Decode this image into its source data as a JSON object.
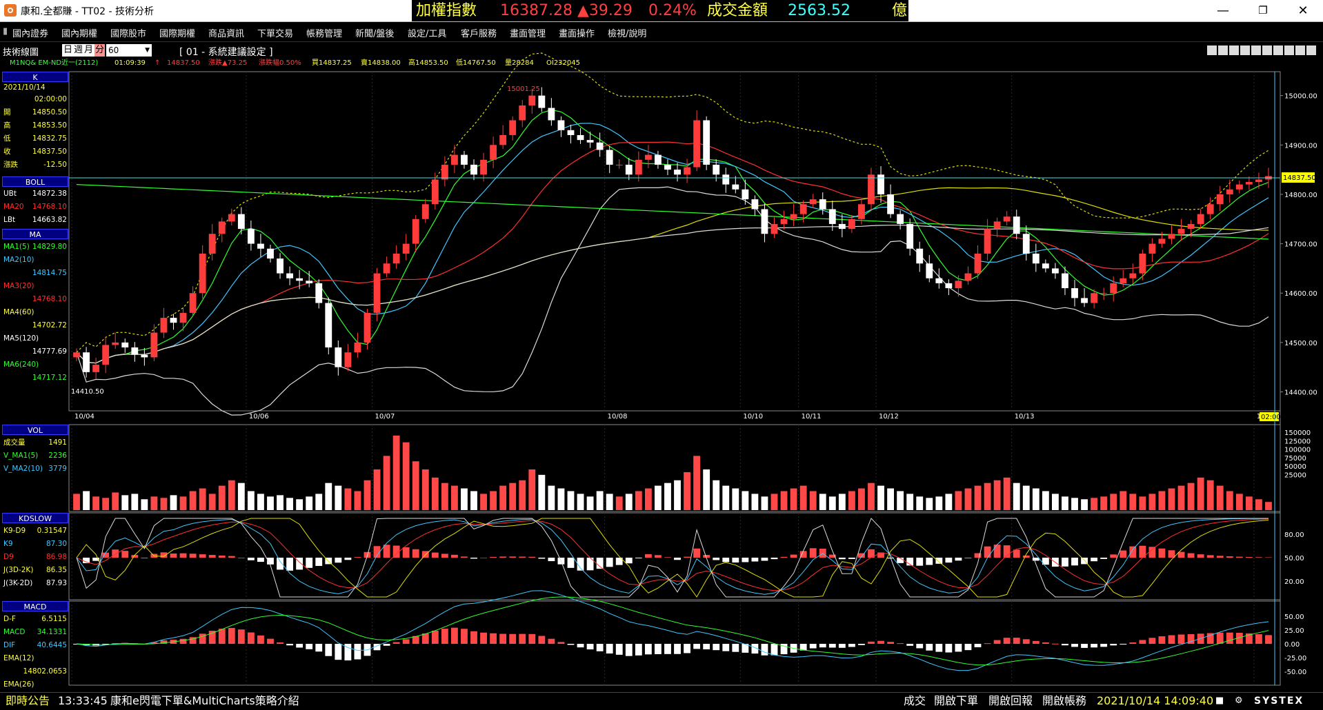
{
  "window": {
    "title": "康和.全都賺 - TT02 - 技術分析"
  },
  "ticker": {
    "label": "加權指數",
    "value": "16387.28",
    "change": "▲39.29",
    "pct": "0.24%",
    "vol_label": "成交金額",
    "vol_value": "2563.52",
    "unit": "億"
  },
  "menu": [
    "國內證券",
    "國內期權",
    "國際股市",
    "國際期權",
    "商品資訊",
    "下單交易",
    "帳務管理",
    "新聞/盤後",
    "設定/工具",
    "客戶服務",
    "畫面管理",
    "畫面操作",
    "檢視/說明"
  ],
  "toolbar": {
    "panel_title": "技術線圖",
    "periods": [
      "日",
      "週",
      "月",
      "分"
    ],
    "interval": "60",
    "settings_label": "[ 01 - 系統建議設定 ]"
  },
  "info": {
    "symbol": "M1NQ&  EM-ND近一(2112)",
    "time": "01:09:39",
    "arrow": "↑",
    "price": "14837.50",
    "change": "漲跌▲73.25",
    "change_pct": "漲跌幅0.50%",
    "bid": "買14837.25",
    "ask": "賣14838.00",
    "high": "高14853.50",
    "low": "低14767.50",
    "volume": "量28284",
    "oi": "OI232045"
  },
  "k_panel": {
    "header": "K",
    "date": "2021/10/14",
    "time": "02:00:00",
    "rows": [
      {
        "label": "開",
        "value": "14850.50"
      },
      {
        "label": "高",
        "value": "14853.50"
      },
      {
        "label": "低",
        "value": "14832.75"
      },
      {
        "label": "收",
        "value": "14837.50"
      },
      {
        "label": "漲跌",
        "value": "-12.50"
      }
    ]
  },
  "boll_panel": {
    "header": "BOLL",
    "rows": [
      {
        "label": "UBt",
        "value": "14872.38",
        "color": "#ffffff"
      },
      {
        "label": "MA20",
        "value": "14768.10",
        "color": "#ff3030"
      },
      {
        "label": "LBt",
        "value": "14663.82",
        "color": "#ffffff"
      }
    ]
  },
  "ma_panel": {
    "header": "MA",
    "rows": [
      {
        "label": "MA1(5)",
        "value": "14829.80",
        "color": "#30ff30",
        "split": false
      },
      {
        "label": "MA2(10)",
        "value": "14814.75",
        "color": "#40c8ff",
        "split": true
      },
      {
        "label": "MA3(20)",
        "value": "14768.10",
        "color": "#ff3030",
        "split": true
      },
      {
        "label": "MA4(60)",
        "value": "14702.72",
        "color": "#ffff40",
        "split": true
      },
      {
        "label": "MA5(120)",
        "value": "14777.69",
        "color": "#ffffff",
        "split": true
      },
      {
        "label": "MA6(240)",
        "value": "14717.12",
        "color": "#30ff30",
        "split": true
      }
    ]
  },
  "vol_panel": {
    "header": "VOL",
    "rows": [
      {
        "label": "成交量",
        "value": "1491",
        "color": "#ffff40"
      },
      {
        "label": "V_MA1(5)",
        "value": "2236",
        "color": "#30ff30"
      },
      {
        "label": "V_MA2(10)",
        "value": "3779",
        "color": "#40c8ff"
      }
    ]
  },
  "kd_panel": {
    "header": "KDSLOW",
    "rows": [
      {
        "label": "K9-D9",
        "value": "0.31547",
        "color": "#ffff40"
      },
      {
        "label": "K9",
        "value": "87.30",
        "color": "#40c8ff"
      },
      {
        "label": "D9",
        "value": "86.98",
        "color": "#ff3030"
      },
      {
        "label": "J(3D-2K)",
        "value": "86.35",
        "color": "#ffff40"
      },
      {
        "label": "J(3K-2D)",
        "value": "87.93",
        "color": "#ffffff"
      }
    ]
  },
  "macd_panel": {
    "header": "MACD",
    "rows": [
      {
        "label": "D-F",
        "value": "6.5115",
        "color": "#ffff40"
      },
      {
        "label": "MACD",
        "value": "34.1331",
        "color": "#30ff30"
      },
      {
        "label": "DIF",
        "value": "40.6445",
        "color": "#40c8ff"
      },
      {
        "label": "EMA(12)",
        "value": "",
        "color": "#ffff40"
      },
      {
        "label": "",
        "value": "14802.0653",
        "color": "#ffff40"
      },
      {
        "label": "EMA(26)",
        "value": "",
        "color": "#ffff40"
      }
    ]
  },
  "chart_data": {
    "type": "candlestick",
    "price_axis": {
      "ticks": [
        "15000.00",
        "14900.00",
        "14800.00",
        "14700.00",
        "14600.00",
        "14500.00",
        "14400.00"
      ],
      "ylim": [
        14370,
        15040
      ]
    },
    "last_price_label": "14837.50",
    "peak_label": "15001.25",
    "low_label": "14410.50",
    "date_labels": [
      "10/04",
      "10/06",
      "10/07",
      "10/08",
      "10/10",
      "10/11",
      "10/12",
      "10/13",
      "10/14",
      "02:00"
    ],
    "volume_axis": {
      "ticks": [
        "150000",
        "125000",
        "100000",
        "75000",
        "50000",
        "25000"
      ]
    },
    "kd_axis": {
      "ticks": [
        "80.00",
        "50.00",
        "20.00"
      ]
    },
    "macd_axis": {
      "ticks": [
        "50.00",
        "25.00",
        "0.00",
        "-25.00",
        "-50.00"
      ]
    },
    "closes": [
      14480,
      14440,
      14455,
      14495,
      14500,
      14490,
      14475,
      14470,
      14520,
      14550,
      14540,
      14560,
      14600,
      14680,
      14720,
      14745,
      14760,
      14730,
      14700,
      14690,
      14670,
      14640,
      14630,
      14625,
      14620,
      14580,
      14490,
      14450,
      14480,
      14500,
      14560,
      14640,
      14660,
      14680,
      14700,
      14750,
      14780,
      14830,
      14860,
      14880,
      14860,
      14840,
      14870,
      14900,
      14920,
      14950,
      14980,
      15000,
      14975,
      14950,
      14930,
      14920,
      14910,
      14905,
      14890,
      14860,
      14860,
      14840,
      14870,
      14880,
      14860,
      14850,
      14840,
      14855,
      14950,
      14860,
      14840,
      14820,
      14810,
      14790,
      14770,
      14720,
      14740,
      14750,
      14760,
      14780,
      14790,
      14770,
      14740,
      14730,
      14750,
      14780,
      14840,
      14800,
      14760,
      14740,
      14690,
      14660,
      14630,
      14620,
      14610,
      14625,
      14640,
      14680,
      14730,
      14745,
      14755,
      14720,
      14680,
      14660,
      14650,
      14640,
      14610,
      14590,
      14580,
      14600,
      14600,
      14620,
      14630,
      14640,
      14680,
      14700,
      14710,
      14720,
      14730,
      14740,
      14760,
      14780,
      14800,
      14810,
      14820,
      14825,
      14830,
      14837
    ],
    "volumes": [
      12,
      14,
      10,
      9,
      13,
      11,
      12,
      8,
      10,
      9,
      11,
      10,
      14,
      16,
      12,
      18,
      22,
      20,
      14,
      12,
      10,
      11,
      9,
      8,
      10,
      12,
      20,
      18,
      16,
      14,
      22,
      30,
      40,
      55,
      50,
      36,
      30,
      24,
      20,
      18,
      16,
      14,
      12,
      14,
      18,
      20,
      22,
      30,
      26,
      18,
      16,
      14,
      12,
      10,
      14,
      12,
      10,
      12,
      14,
      16,
      18,
      20,
      22,
      28,
      40,
      30,
      22,
      18,
      16,
      14,
      12,
      10,
      12,
      14,
      16,
      18,
      14,
      12,
      10,
      12,
      14,
      16,
      20,
      18,
      16,
      14,
      12,
      10,
      9,
      10,
      12,
      14,
      16,
      18,
      20,
      22,
      24,
      20,
      18,
      16,
      14,
      12,
      10,
      9,
      8,
      9,
      10,
      12,
      14,
      12,
      10,
      12,
      14,
      16,
      18,
      20,
      24,
      22,
      18,
      14,
      12,
      10,
      8,
      6
    ]
  }
}
